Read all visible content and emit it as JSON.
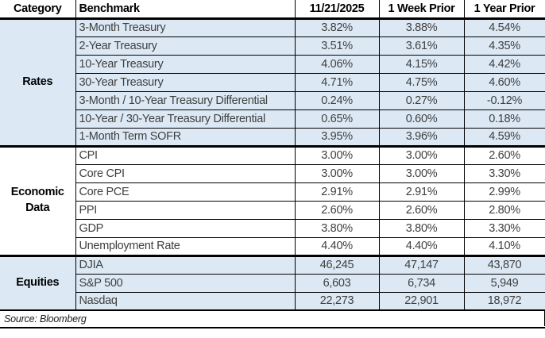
{
  "chart_data": {
    "type": "table",
    "columns": [
      "Category",
      "Benchmark",
      "11/21/2025",
      "1 Week Prior",
      "1 Year Prior"
    ],
    "sections": [
      {
        "category": "Rates",
        "rows": [
          {
            "benchmark": "3-Month Treasury",
            "values": [
              "3.82%",
              "3.88%",
              "4.54%"
            ]
          },
          {
            "benchmark": "2-Year Treasury",
            "values": [
              "3.51%",
              "3.61%",
              "4.35%"
            ]
          },
          {
            "benchmark": "10-Year Treasury",
            "values": [
              "4.06%",
              "4.15%",
              "4.42%"
            ]
          },
          {
            "benchmark": "30-Year Treasury",
            "values": [
              "4.71%",
              "4.75%",
              "4.60%"
            ]
          },
          {
            "benchmark": "3-Month / 10-Year Treasury Differential",
            "values": [
              "0.24%",
              "0.27%",
              "-0.12%"
            ]
          },
          {
            "benchmark": "10-Year / 30-Year Treasury Differential",
            "values": [
              "0.65%",
              "0.60%",
              "0.18%"
            ]
          },
          {
            "benchmark": "1-Month Term SOFR",
            "values": [
              "3.95%",
              "3.96%",
              "4.59%"
            ]
          }
        ]
      },
      {
        "category": "Economic Data",
        "rows": [
          {
            "benchmark": "CPI",
            "values": [
              "3.00%",
              "3.00%",
              "2.60%"
            ]
          },
          {
            "benchmark": "Core CPI",
            "values": [
              "3.00%",
              "3.00%",
              "3.30%"
            ]
          },
          {
            "benchmark": "Core PCE",
            "values": [
              "2.91%",
              "2.91%",
              "2.99%"
            ]
          },
          {
            "benchmark": "PPI",
            "values": [
              "2.60%",
              "2.60%",
              "2.80%"
            ]
          },
          {
            "benchmark": "GDP",
            "values": [
              "3.80%",
              "3.80%",
              "3.30%"
            ]
          },
          {
            "benchmark": "Unemployment Rate",
            "values": [
              "4.40%",
              "4.40%",
              "4.10%"
            ]
          }
        ]
      },
      {
        "category": "Equities",
        "rows": [
          {
            "benchmark": "DJIA",
            "values": [
              "46,245",
              "47,147",
              "43,870"
            ]
          },
          {
            "benchmark": "S&P 500",
            "values": [
              "6,603",
              "6,734",
              "5,949"
            ]
          },
          {
            "benchmark": "Nasdaq",
            "values": [
              "22,273",
              "22,901",
              "18,972"
            ]
          }
        ]
      }
    ],
    "source_note": "Source: Bloomberg",
    "layout": {
      "grid": true,
      "highlight_sections": [
        "Rates",
        "Equities"
      ]
    }
  },
  "colors": {
    "section_highlight": "#dce9f5",
    "border": "#000000",
    "body_text": "#3f3f3f",
    "header_text": "#000000"
  }
}
